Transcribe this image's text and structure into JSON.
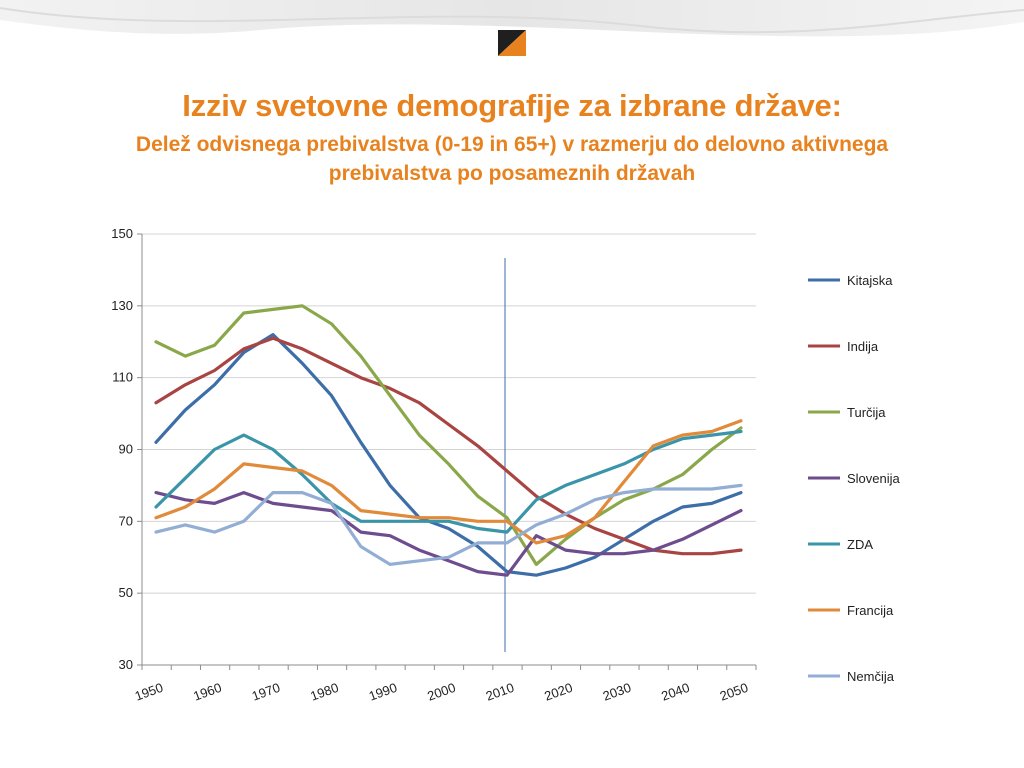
{
  "slide": {
    "title": "Izziv svetovne demografije za izbrane države:",
    "subtitle": "Delež odvisnega prebivalstva (0-19  in 65+) v razmerju do delovno aktivnega prebivalstva po posameznih državah"
  },
  "colors": {
    "title": "#e8821e",
    "logo_dark": "#1f1f1f",
    "logo_accent": "#e8821e"
  },
  "chart_data": {
    "type": "line",
    "title": "",
    "xlabel": "",
    "ylabel": "",
    "x": [
      1950,
      1955,
      1960,
      1965,
      1970,
      1975,
      1980,
      1985,
      1990,
      1995,
      2000,
      2005,
      2010,
      2015,
      2020,
      2025,
      2030,
      2035,
      2040,
      2045,
      2050
    ],
    "x_ticks": [
      "1950",
      "1960",
      "1970",
      "1980",
      "1990",
      "2000",
      "2010",
      "2020",
      "2030",
      "2040",
      "2050"
    ],
    "ylim": [
      30,
      150
    ],
    "y_ticks": [
      30,
      50,
      70,
      90,
      110,
      130,
      150
    ],
    "grid": "horizontal",
    "legend_position": "right",
    "marker_line_x": 2010,
    "series": [
      {
        "name": "Kitajska",
        "color": "#3d6ea8",
        "values": [
          92,
          101,
          108,
          117,
          122,
          114,
          105,
          92,
          80,
          71,
          68,
          63,
          56,
          55,
          57,
          60,
          65,
          70,
          74,
          75,
          78
        ]
      },
      {
        "name": "Indija",
        "color": "#a84442",
        "values": [
          103,
          108,
          112,
          118,
          121,
          118,
          114,
          110,
          107,
          103,
          97,
          91,
          84,
          77,
          72,
          68,
          65,
          62,
          61,
          61,
          62
        ]
      },
      {
        "name": "Turčija",
        "color": "#8aa84a",
        "values": [
          120,
          116,
          119,
          128,
          129,
          130,
          125,
          116,
          105,
          94,
          86,
          77,
          71,
          58,
          65,
          71,
          76,
          79,
          83,
          90,
          96
        ]
      },
      {
        "name": "Slovenija",
        "color": "#6e4d8e",
        "values": [
          78,
          76,
          75,
          78,
          75,
          74,
          73,
          67,
          66,
          62,
          59,
          56,
          55,
          66,
          62,
          61,
          61,
          62,
          65,
          69,
          73
        ]
      },
      {
        "name": "ZDA",
        "color": "#3b95a8",
        "values": [
          74,
          82,
          90,
          94,
          90,
          83,
          75,
          70,
          70,
          70,
          70,
          68,
          67,
          76,
          80,
          83,
          86,
          90,
          93,
          94,
          95
        ]
      },
      {
        "name": "Francija",
        "color": "#e08a3a",
        "values": [
          71,
          74,
          79,
          86,
          85,
          84,
          80,
          73,
          72,
          71,
          71,
          70,
          70,
          64,
          66,
          71,
          81,
          91,
          94,
          95,
          98
        ]
      },
      {
        "name": "Nemčija",
        "color": "#93aed4",
        "values": [
          67,
          69,
          67,
          70,
          78,
          78,
          75,
          63,
          58,
          59,
          60,
          64,
          64,
          69,
          72,
          76,
          78,
          79,
          79,
          79,
          80
        ]
      }
    ]
  }
}
